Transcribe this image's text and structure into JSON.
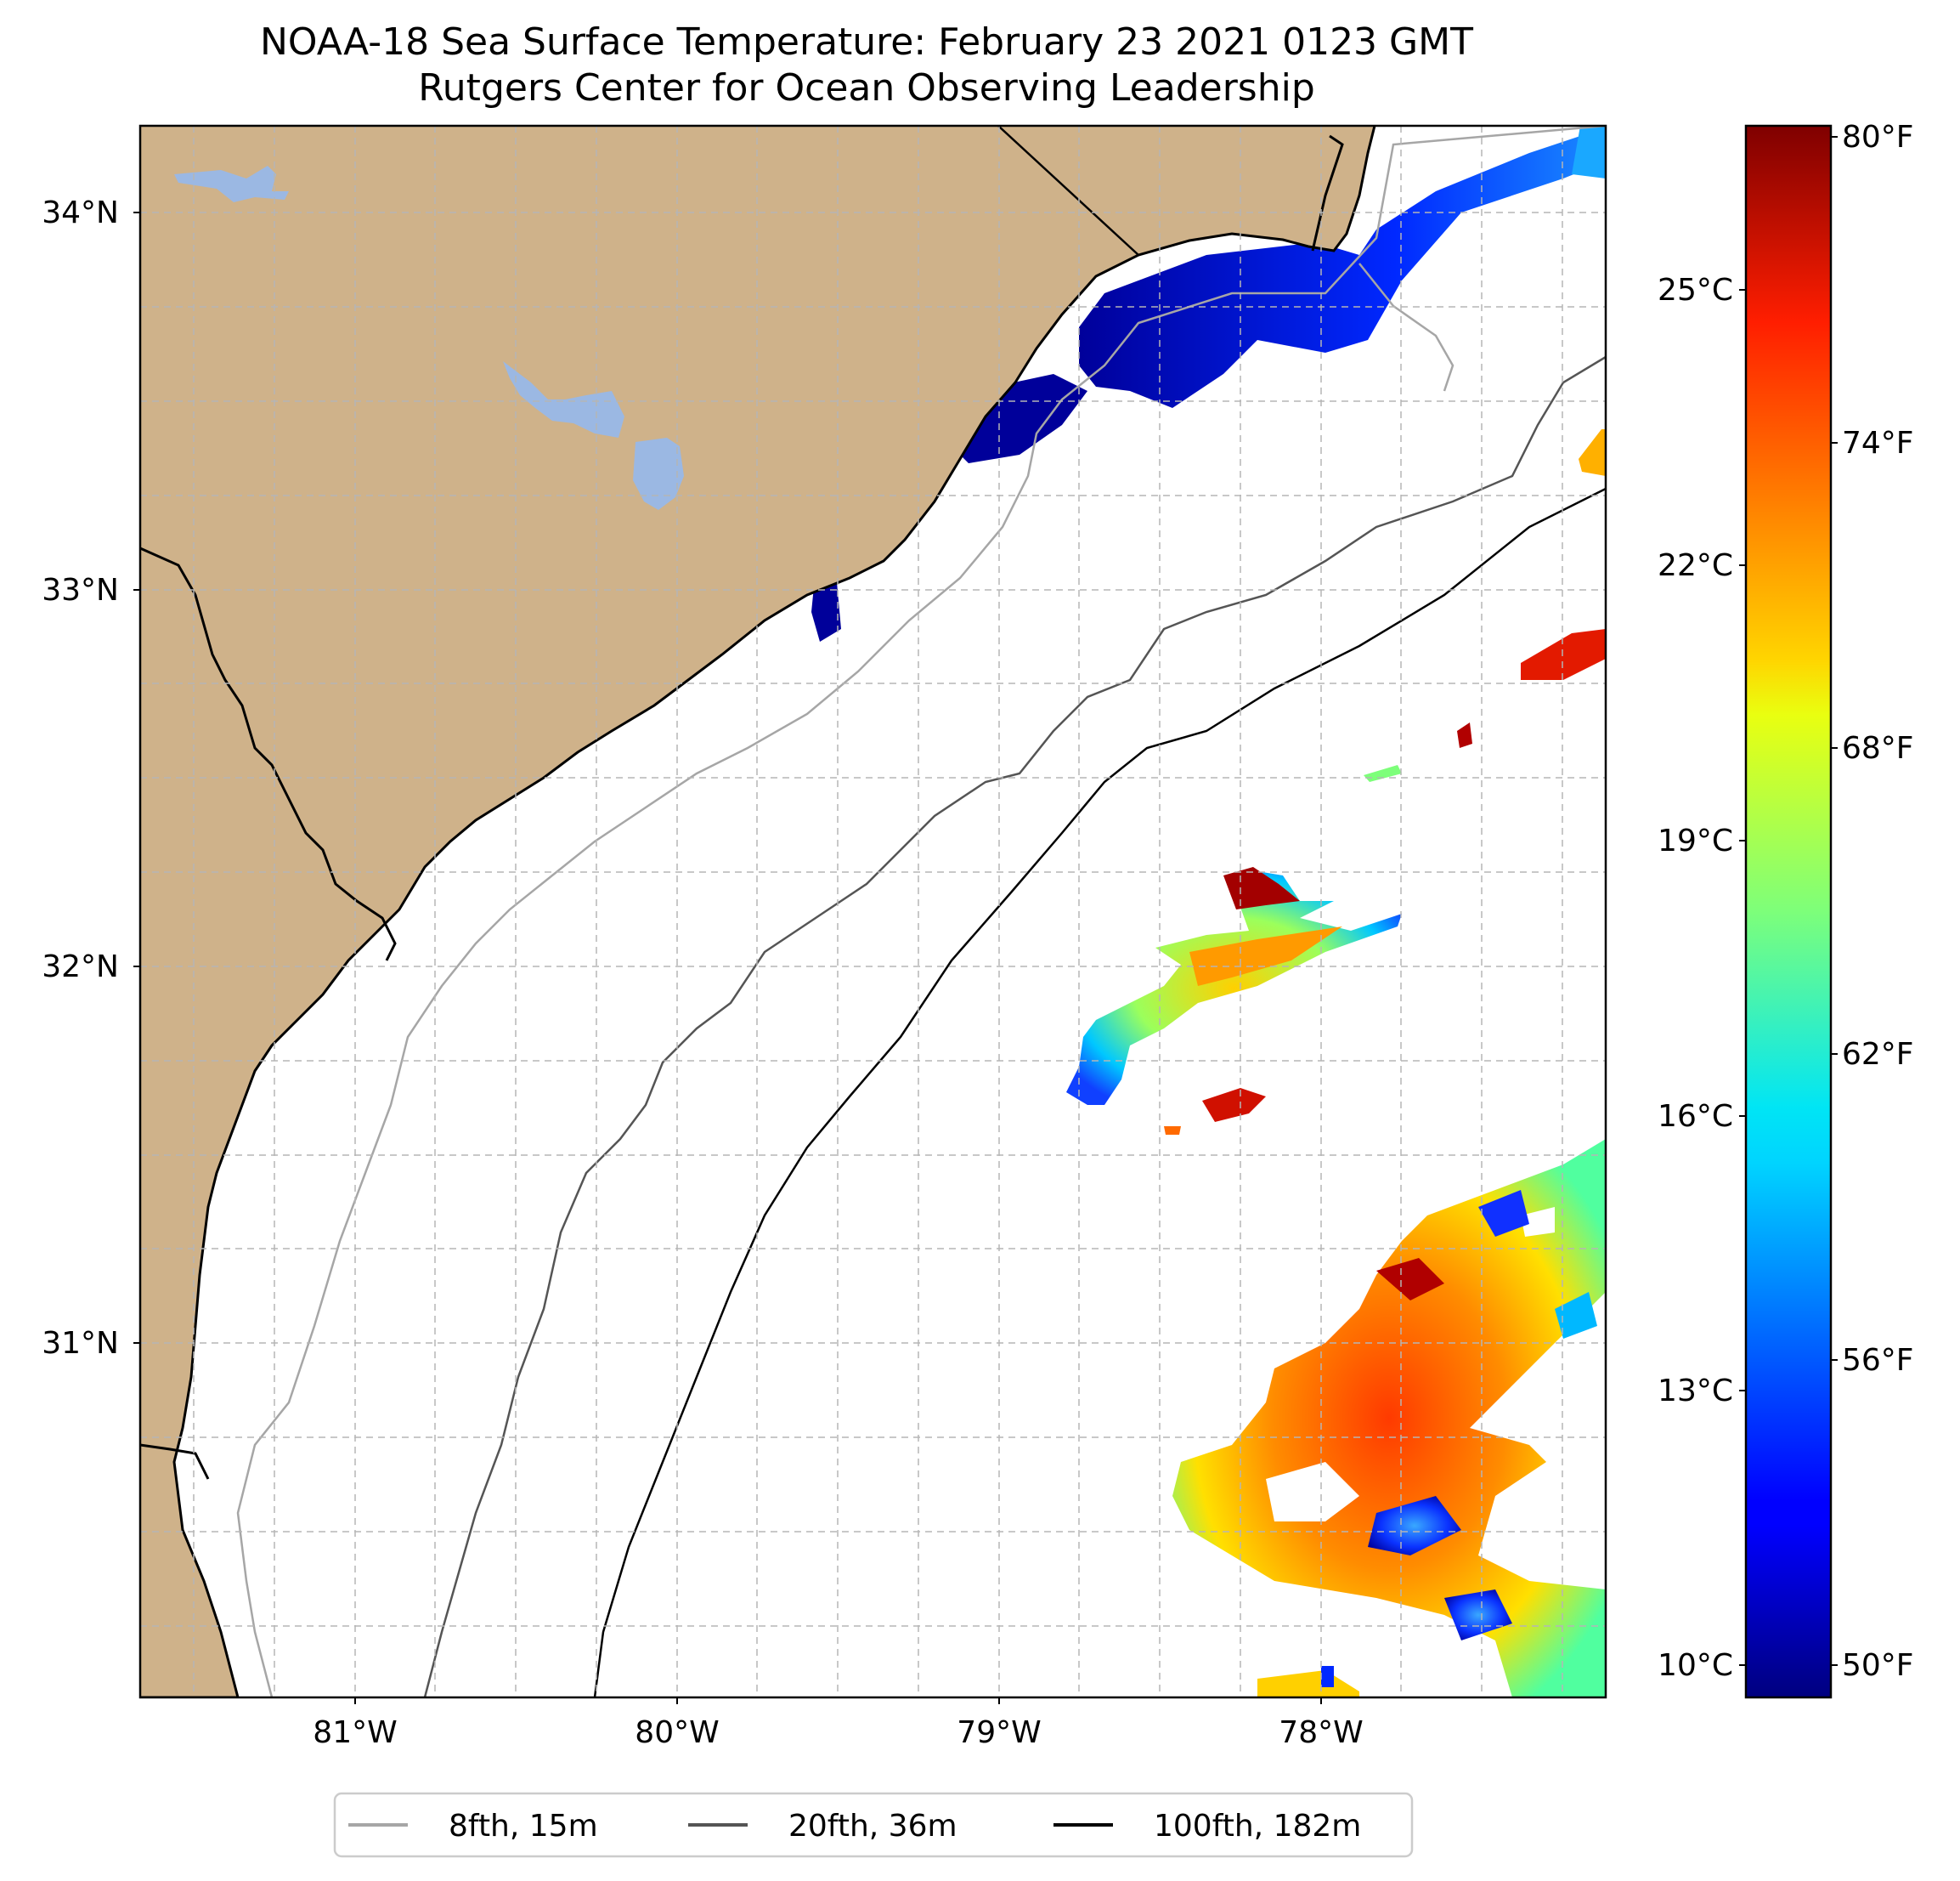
{
  "title": {
    "line1": "NOAA-18 Sea Surface Temperature: February 23 2021 0123 GMT",
    "line2": "Rutgers Center for Ocean Observing Leadership"
  },
  "map": {
    "land_color": "#cfb28a",
    "water_color": "#ffffff",
    "lake_color": "#9bb8e3",
    "lon_range": [
      -81.67,
      -77.17
    ],
    "lat_range": [
      30.12,
      34.22
    ],
    "lat_ticks": [
      {
        "value": 34,
        "label": "34°N"
      },
      {
        "value": 33,
        "label": "33°N"
      },
      {
        "value": 32,
        "label": "32°N"
      },
      {
        "value": 31,
        "label": "31°N"
      }
    ],
    "lon_ticks": [
      {
        "value": -81,
        "label": "81°W"
      },
      {
        "value": -80,
        "label": "80°W"
      },
      {
        "value": -79,
        "label": "79°W"
      },
      {
        "value": -78,
        "label": "78°W"
      }
    ],
    "gridlines": "dashed"
  },
  "colorbar": {
    "colormap": "jet",
    "min_c": 9.6,
    "max_c": 27.0,
    "celsius_ticks": [
      {
        "value": 25,
        "label": "25°C"
      },
      {
        "value": 22,
        "label": "22°C"
      },
      {
        "value": 19,
        "label": "19°C"
      },
      {
        "value": 16,
        "label": "16°C"
      },
      {
        "value": 13,
        "label": "13°C"
      },
      {
        "value": 10,
        "label": "10°C"
      }
    ],
    "fahrenheit_ticks": [
      {
        "value": 80,
        "label": "80°F"
      },
      {
        "value": 74,
        "label": "74°F"
      },
      {
        "value": 68,
        "label": "68°F"
      },
      {
        "value": 62,
        "label": "62°F"
      },
      {
        "value": 56,
        "label": "56°F"
      },
      {
        "value": 50,
        "label": "50°F"
      }
    ]
  },
  "legend": {
    "placement": "bottom-center",
    "items": [
      {
        "label": "8fth, 15m",
        "color": "#a6a6a6"
      },
      {
        "label": "20fth, 36m",
        "color": "#555555"
      },
      {
        "label": "100fth, 182m",
        "color": "#000000"
      }
    ]
  }
}
